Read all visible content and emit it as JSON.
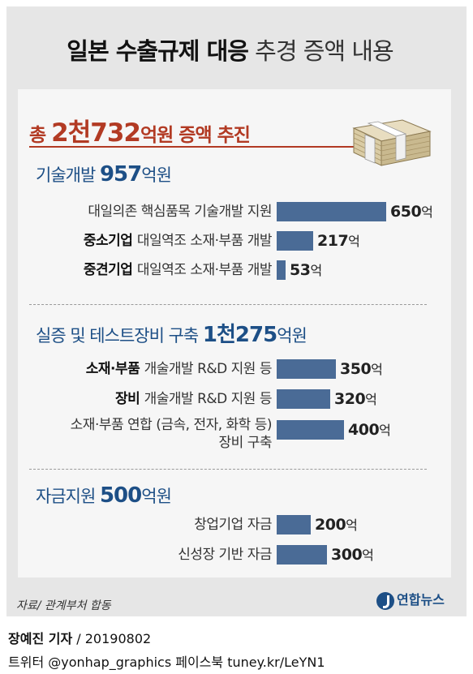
{
  "title": {
    "bold": "일본 수출규제 대응",
    "light": "추경 증액 내용"
  },
  "total": {
    "prefix": "총 ",
    "amount": "2천732",
    "suffix": "억원 증액 추진"
  },
  "colors": {
    "bar": "#4a6b96",
    "accent_red": "#b23a23",
    "section_blue": "#1d4f86"
  },
  "chart_data": {
    "type": "bar",
    "title": "일본 수출규제 대응 추경 증액 내용",
    "unit": "억",
    "groups": [
      {
        "title": "기술개발",
        "total_num": "957",
        "total_unit": "억원",
        "items": [
          {
            "bold": "",
            "label": "대일의존 핵심품목 기술개발 지원",
            "value": 650
          },
          {
            "bold": "중소기업",
            "label": "대일역조 소재·부품 개발",
            "value": 217
          },
          {
            "bold": "중견기업",
            "label": "대일역조 소재·부품 개발",
            "value": 53
          }
        ]
      },
      {
        "title": "실증 및 테스트장비 구축",
        "total_num": "1천275",
        "total_unit": "억원",
        "items": [
          {
            "bold": "소재·부품",
            "label": "개술개발 R&D 지원 등",
            "value": 350
          },
          {
            "bold": "장비",
            "label": "개술개발 R&D 지원 등",
            "value": 320
          },
          {
            "bold": "",
            "label": "소재·부품 연합 (금속, 전자, 화학 등)",
            "label2": "장비 구축",
            "value": 400
          }
        ]
      },
      {
        "title": "자금지원",
        "total_num": "500",
        "total_unit": "억원",
        "items": [
          {
            "bold": "",
            "label": "창업기업 자금",
            "value": 200
          },
          {
            "bold": "",
            "label": "신성장 기반 자금",
            "value": 300
          }
        ]
      }
    ]
  },
  "source": "자료/ 관계부처 합동",
  "logo": "연합뉴스",
  "byline": {
    "name": "장예진 기자",
    "date": " / 20190802"
  },
  "social": "트위터 @yonhap_graphics  페이스북 tuney.kr/LeYN1"
}
